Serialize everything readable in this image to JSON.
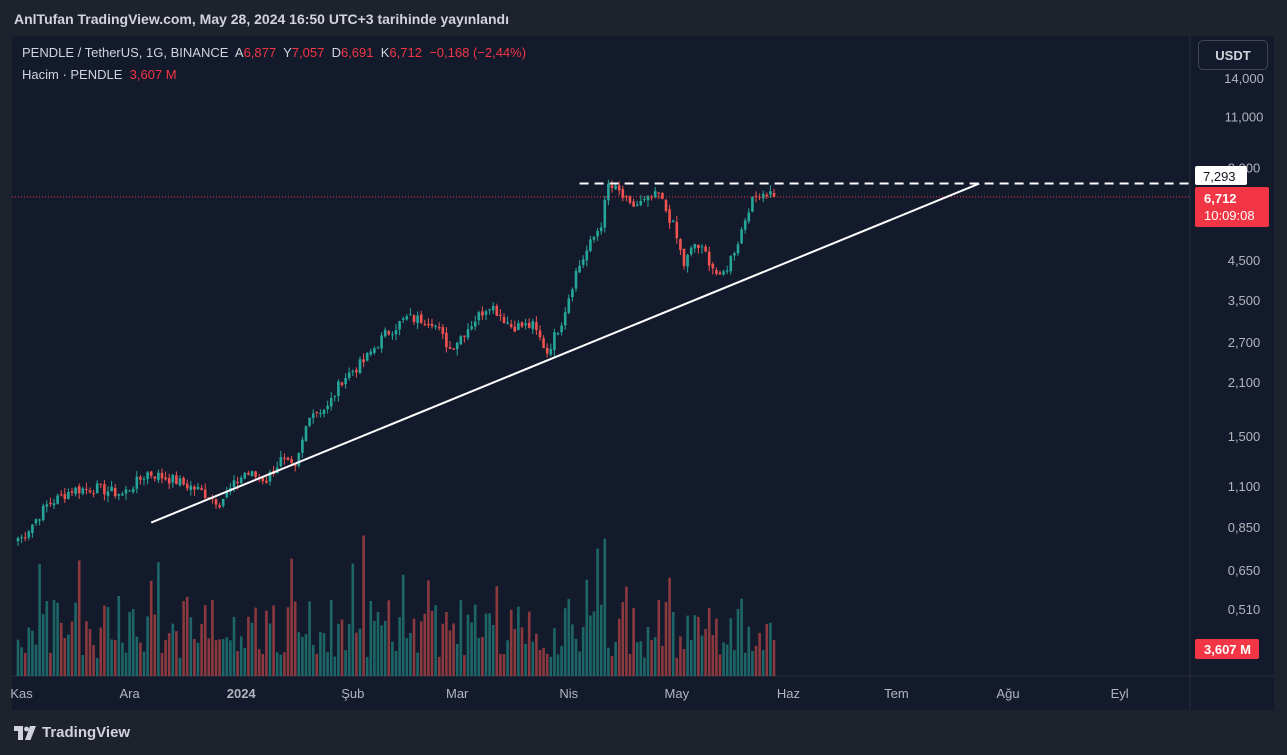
{
  "header": {
    "published": "AnlTufan TradingView.com, May 28, 2024 16:50 UTC+3 tarihinde yayınlandı"
  },
  "legend": {
    "symbol": "PENDLE / TetherUS, 1G, BINANCE",
    "o_label": "A",
    "o_value": "6,877",
    "h_label": "Y",
    "h_value": "7,057",
    "l_label": "D",
    "l_value": "6,691",
    "c_label": "K",
    "c_value": "6,712",
    "change": "−0,168 (−2,44%)",
    "volume_label": "Hacim · PENDLE",
    "volume_value": "3,607 M"
  },
  "currency_button": "USDT",
  "footer": {
    "brand": "TradingView"
  },
  "price_badges": {
    "level": "7,293",
    "last": "6,712",
    "countdown": "10:09:08",
    "volume": "3,607 M"
  },
  "colors": {
    "up": "#26a69a",
    "down": "#ef5350",
    "background": "#131a2b",
    "line": "#ffffff"
  },
  "chart_data": {
    "type": "candlestick",
    "symbol": "PENDLE/USDT",
    "timeframe": "1G",
    "y_scale": "log",
    "y_ticks": [
      "14,000",
      "11,000",
      "8,000",
      "4,500",
      "3,500",
      "2,700",
      "2,100",
      "1,500",
      "1,100",
      "0,850",
      "0,650",
      "0,510"
    ],
    "x_ticks": [
      "Kas",
      "Ara",
      "2024",
      "Şub",
      "Mar",
      "Nis",
      "May",
      "Haz",
      "Tem",
      "Ağu",
      "Eyl"
    ],
    "anchors": [
      {
        "date": "2023-11-01",
        "close": 0.8
      },
      {
        "date": "2023-11-08",
        "close": 0.98
      },
      {
        "date": "2023-11-15",
        "close": 1.08
      },
      {
        "date": "2023-11-22",
        "close": 1.09
      },
      {
        "date": "2023-11-29",
        "close": 1.05
      },
      {
        "date": "2023-12-06",
        "close": 1.2
      },
      {
        "date": "2023-12-13",
        "close": 1.15
      },
      {
        "date": "2023-12-20",
        "close": 1.08
      },
      {
        "date": "2023-12-26",
        "close": 1.0
      },
      {
        "date": "2024-01-02",
        "close": 1.2
      },
      {
        "date": "2024-01-08",
        "close": 1.15
      },
      {
        "date": "2024-01-12",
        "close": 1.3
      },
      {
        "date": "2024-01-16",
        "close": 1.22
      },
      {
        "date": "2024-01-20",
        "close": 1.75
      },
      {
        "date": "2024-01-25",
        "close": 1.8
      },
      {
        "date": "2024-01-29",
        "close": 2.15
      },
      {
        "date": "2024-02-04",
        "close": 2.4
      },
      {
        "date": "2024-02-10",
        "close": 2.85
      },
      {
        "date": "2024-02-16",
        "close": 3.15
      },
      {
        "date": "2024-02-23",
        "close": 3.1
      },
      {
        "date": "2024-02-28",
        "close": 2.6
      },
      {
        "date": "2024-03-05",
        "close": 3.05
      },
      {
        "date": "2024-03-10",
        "close": 3.45
      },
      {
        "date": "2024-03-16",
        "close": 3.0
      },
      {
        "date": "2024-03-22",
        "close": 3.0
      },
      {
        "date": "2024-03-26",
        "close": 2.55
      },
      {
        "date": "2024-03-30",
        "close": 3.1
      },
      {
        "date": "2024-04-03",
        "close": 4.2
      },
      {
        "date": "2024-04-07",
        "close": 5.0
      },
      {
        "date": "2024-04-10",
        "close": 5.7
      },
      {
        "date": "2024-04-12",
        "close": 7.2
      },
      {
        "date": "2024-04-15",
        "close": 6.9
      },
      {
        "date": "2024-04-18",
        "close": 6.3
      },
      {
        "date": "2024-04-22",
        "close": 6.5
      },
      {
        "date": "2024-04-26",
        "close": 6.8
      },
      {
        "date": "2024-04-30",
        "close": 5.6
      },
      {
        "date": "2024-05-03",
        "close": 4.4
      },
      {
        "date": "2024-05-06",
        "close": 5.0
      },
      {
        "date": "2024-05-09",
        "close": 4.7
      },
      {
        "date": "2024-05-13",
        "close": 4.0
      },
      {
        "date": "2024-05-15",
        "close": 4.35
      },
      {
        "date": "2024-05-18",
        "close": 5.1
      },
      {
        "date": "2024-05-21",
        "close": 6.3
      },
      {
        "date": "2024-05-24",
        "close": 6.9
      },
      {
        "date": "2024-05-27",
        "close": 6.88
      },
      {
        "date": "2024-05-28",
        "close": 6.712
      }
    ],
    "last_candle": {
      "open": 6.877,
      "high": 7.057,
      "low": 6.691,
      "close": 6.712
    },
    "horizontal_line": {
      "value": 7.293,
      "style": "dashed"
    },
    "trendline": [
      {
        "date": "2023-12-07",
        "value": 0.88
      },
      {
        "date": "2024-07-24",
        "value": 7.29
      }
    ],
    "volume_last": 3.607
  }
}
